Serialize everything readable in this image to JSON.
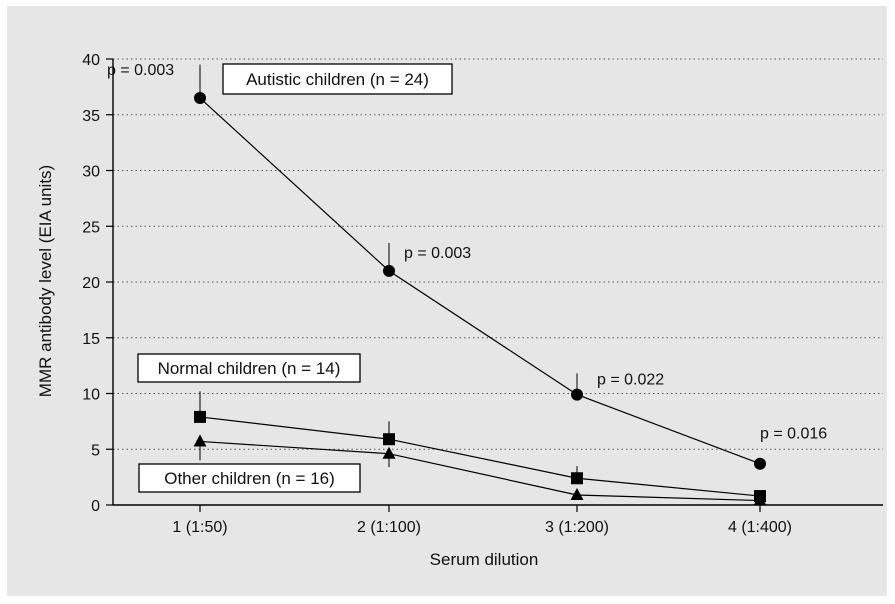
{
  "chart_data": {
    "type": "line",
    "xlabel": "Serum dilution",
    "ylabel": "MMR antibody level (EIA units)",
    "ylim": [
      0,
      40
    ],
    "yticks": [
      "0",
      "5",
      "10",
      "15",
      "20",
      "25",
      "30",
      "35",
      "40"
    ],
    "categories": [
      "1 (1:50)",
      "2 (1:100)",
      "3 (1:200)",
      "4 (1:400)"
    ],
    "x": [
      1,
      2,
      3,
      4
    ],
    "grid": "horizontal-dotted",
    "series": [
      {
        "name": "Autistic children (n = 24)",
        "marker": "circle",
        "values": [
          36.5,
          21.0,
          9.9,
          3.7
        ],
        "error_upper": [
          39.5,
          23.5,
          11.8,
          3.7
        ]
      },
      {
        "name": "Normal children (n = 14)",
        "marker": "square",
        "values": [
          7.9,
          5.9,
          2.4,
          0.8
        ],
        "error_upper": [
          10.2,
          7.5,
          3.5,
          0.8
        ]
      },
      {
        "name": "Other children (n = 16)",
        "marker": "triangle",
        "values": [
          5.7,
          4.6,
          0.9,
          0.4
        ],
        "error_lower": [
          4.0,
          3.4,
          0.9,
          0.4
        ]
      }
    ],
    "annotations": [
      {
        "text": "p = 0.003",
        "x": 1
      },
      {
        "text": "p = 0.003",
        "x": 2
      },
      {
        "text": "p = 0.022",
        "x": 3
      },
      {
        "text": "p = 0.016",
        "x": 4
      }
    ],
    "colors": {
      "background": "#e6e6e6",
      "plot": "#000000",
      "legend_box": "#ffffff"
    }
  }
}
